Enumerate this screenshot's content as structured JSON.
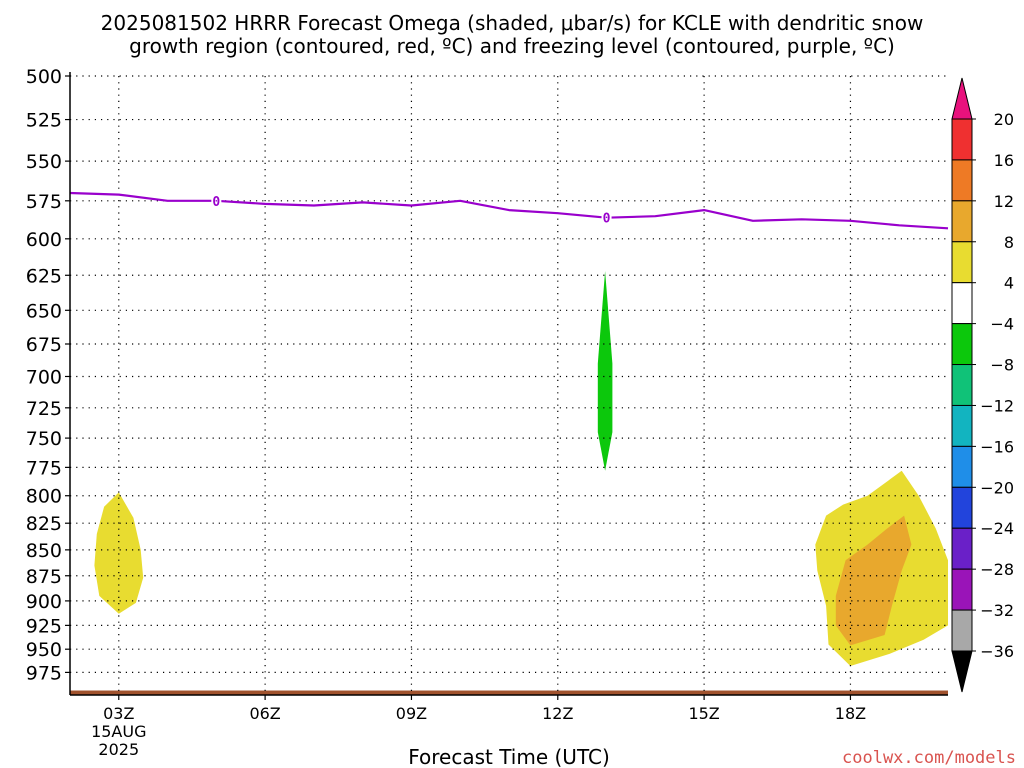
{
  "title_line1": "2025081502 HRRR Forecast Omega (shaded, μbar/s) for KCLE with dendritic snow",
  "title_line2": "growth region (contoured, red, ºC) and freezing level (contoured, purple, ºC)",
  "credit": "coolwx.com/models",
  "chart_data": {
    "type": "time-height cross section",
    "xlabel": "Forecast Time (UTC)",
    "x_ticks": [
      "03Z",
      "06Z",
      "09Z",
      "12Z",
      "15Z",
      "18Z"
    ],
    "x_tick_hours": [
      3,
      6,
      9,
      12,
      15,
      18
    ],
    "x_date_label": [
      "15AUG",
      "2025"
    ],
    "x_range_hours": [
      2,
      20
    ],
    "y_ticks": [
      500,
      525,
      550,
      575,
      600,
      625,
      650,
      675,
      700,
      725,
      750,
      775,
      800,
      825,
      850,
      875,
      900,
      925,
      950,
      975
    ],
    "y_range_hPa": [
      500,
      1000
    ],
    "y_scale": "log-pressure, inverted",
    "grid": "dotted",
    "colorbar": {
      "labels": [
        "20",
        "16",
        "12",
        "8",
        "4",
        "−4",
        "−8",
        "−12",
        "−16",
        "−20",
        "−24",
        "−28",
        "−32",
        "−36"
      ],
      "colors": [
        "#e8127d",
        "#ef3030",
        "#ee7a25",
        "#e8a82d",
        "#e8dc30",
        "#ffffff",
        "#0cc80c",
        "#10c278",
        "#12b4c0",
        "#1f8ee8",
        "#2244dc",
        "#6a20c8",
        "#9a14b8",
        "#a8a8a8",
        "#000000"
      ]
    },
    "freezing_level": {
      "color": "#9900cc",
      "label": "0",
      "label_hours": [
        5,
        13
      ],
      "points_hour_hPa": [
        [
          2,
          570
        ],
        [
          3,
          571
        ],
        [
          4,
          575
        ],
        [
          5,
          575
        ],
        [
          6,
          577
        ],
        [
          7,
          578
        ],
        [
          8,
          576
        ],
        [
          9,
          578
        ],
        [
          10,
          575
        ],
        [
          11,
          581
        ],
        [
          12,
          583
        ],
        [
          13,
          586
        ],
        [
          14,
          585
        ],
        [
          15,
          581
        ],
        [
          16,
          588
        ],
        [
          17,
          587
        ],
        [
          18,
          588
        ],
        [
          19,
          591
        ],
        [
          20,
          593
        ]
      ]
    },
    "omega_regions": [
      {
        "value_range": "4 to 8",
        "color": "#e8dc30",
        "points_hour_hPa": [
          [
            3.0,
            797
          ],
          [
            3.3,
            820
          ],
          [
            3.45,
            850
          ],
          [
            3.5,
            877
          ],
          [
            3.35,
            902
          ],
          [
            3.0,
            913
          ],
          [
            2.6,
            895
          ],
          [
            2.5,
            865
          ],
          [
            2.55,
            835
          ],
          [
            2.7,
            810
          ]
        ]
      },
      {
        "value_range": "-8 to -4",
        "color": "#0cc80c",
        "points_hour_hPa": [
          [
            12.97,
            622
          ],
          [
            13.12,
            690
          ],
          [
            13.12,
            745
          ],
          [
            12.97,
            778
          ],
          [
            12.82,
            745
          ],
          [
            12.82,
            690
          ]
        ]
      },
      {
        "value_range": "4 to 8",
        "color": "#e8dc30",
        "points_hour_hPa": [
          [
            19.05,
            778
          ],
          [
            19.4,
            800
          ],
          [
            19.75,
            830
          ],
          [
            20.0,
            860
          ],
          [
            20.0,
            925
          ],
          [
            19.5,
            940
          ],
          [
            18.8,
            955
          ],
          [
            18.0,
            968
          ],
          [
            17.55,
            945
          ],
          [
            17.5,
            905
          ],
          [
            17.32,
            870
          ],
          [
            17.28,
            845
          ],
          [
            17.5,
            818
          ],
          [
            17.85,
            808
          ],
          [
            18.35,
            800
          ]
        ]
      },
      {
        "value_range": "8 to 12",
        "color": "#e8a82d",
        "points_hour_hPa": [
          [
            19.1,
            818
          ],
          [
            19.25,
            845
          ],
          [
            19.05,
            870
          ],
          [
            18.85,
            905
          ],
          [
            18.7,
            935
          ],
          [
            18.0,
            946
          ],
          [
            17.7,
            925
          ],
          [
            17.7,
            895
          ],
          [
            17.9,
            860
          ],
          [
            18.35,
            845
          ],
          [
            18.75,
            830
          ]
        ]
      }
    ],
    "terrain_hPa": 995
  }
}
